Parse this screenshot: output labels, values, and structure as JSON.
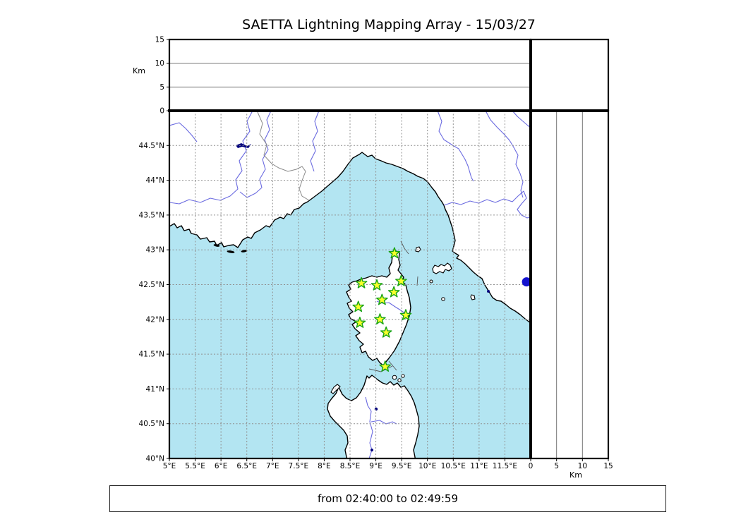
{
  "title": "SAETTA Lightning Mapping Array - 15/03/27",
  "footer": {
    "text": "from 02:40:00 to 02:49:59"
  },
  "colors": {
    "sea": "#b3e5f2",
    "land": "#ffffff",
    "coastline": "#000000",
    "river": "#6a6ae0",
    "lake": "#00007e",
    "country_border": "#8a8a8a",
    "grid_line": "#909090",
    "panel_grid_line": "#777777",
    "station_fill": "#f8ff2b",
    "station_stroke": "#17a317",
    "flash": "#1412cf",
    "axis": "#000000"
  },
  "chart_data": {
    "type": "map",
    "title": "SAETTA Lightning Mapping Array - 15/03/27",
    "time_window": "from 02:40:00 to 02:49:59",
    "map_panel": {
      "lon_range": [
        5,
        12
      ],
      "lat_range": [
        40,
        45
      ],
      "lon_tick_labels": [
        "5°E",
        "5.5°E",
        "6°E",
        "6.5°E",
        "7°E",
        "7.5°E",
        "8°E",
        "8.5°E",
        "9°E",
        "9.5°E",
        "10°E",
        "10.5°E",
        "11°E",
        "11.5°E"
      ],
      "lat_tick_labels": [
        "40°N",
        "40.5°N",
        "41°N",
        "41.5°N",
        "42°N",
        "42.5°N",
        "43°N",
        "43.5°N",
        "44°N",
        "44.5°N"
      ],
      "grid": true,
      "stations_lon_lat": [
        [
          9.36,
          42.95
        ],
        [
          8.72,
          42.52
        ],
        [
          9.02,
          42.49
        ],
        [
          9.49,
          42.55
        ],
        [
          9.35,
          42.39
        ],
        [
          9.12,
          42.28
        ],
        [
          8.66,
          42.18
        ],
        [
          9.58,
          42.06
        ],
        [
          8.69,
          41.95
        ],
        [
          9.08,
          42.0
        ],
        [
          9.2,
          41.81
        ],
        [
          9.18,
          41.32
        ]
      ],
      "flash_points_lon_lat": [
        [
          11.92,
          42.54
        ]
      ]
    },
    "altitude_top_panel": {
      "ylabel": "Km",
      "tick_labels": [
        "0",
        "5",
        "10",
        "15"
      ],
      "tick_values": [
        0,
        5,
        10,
        15
      ],
      "range": [
        0,
        15
      ],
      "points": []
    },
    "altitude_right_panel": {
      "xlabel": "Km",
      "tick_labels": [
        "0",
        "5",
        "10",
        "15"
      ],
      "tick_values": [
        0,
        5,
        10,
        15
      ],
      "range": [
        0,
        15
      ],
      "points": []
    }
  }
}
